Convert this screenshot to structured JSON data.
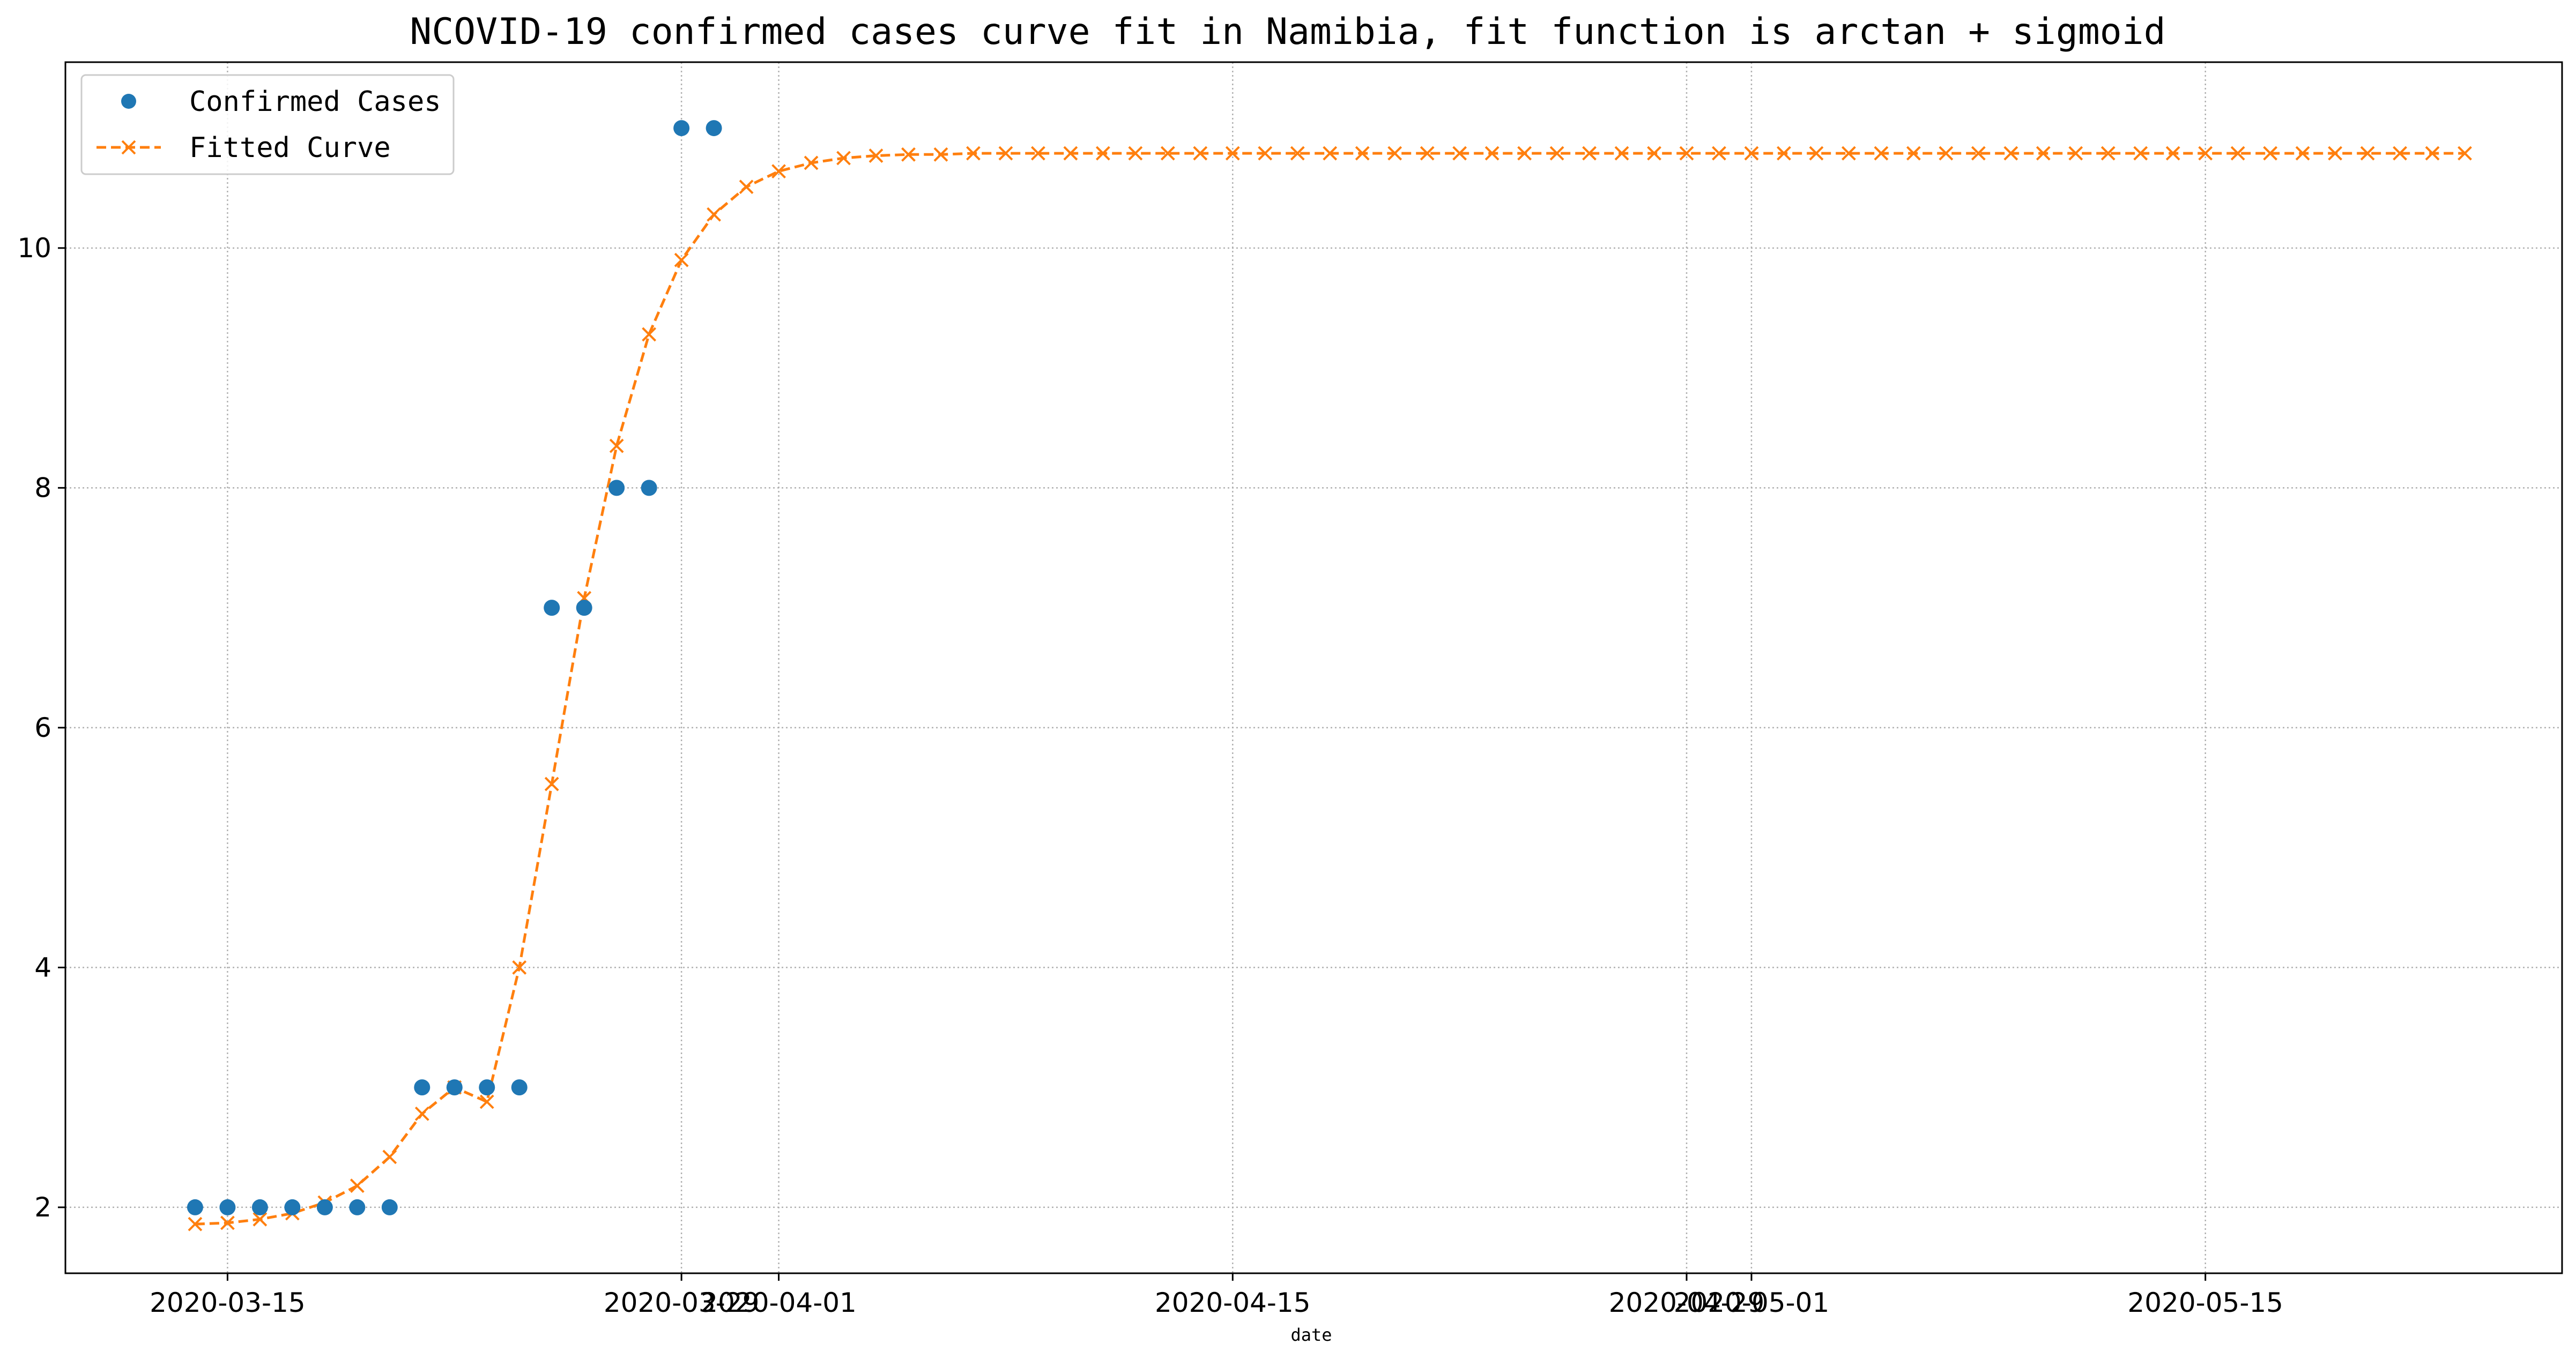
{
  "chart_data": {
    "type": "line",
    "title": "NCOVID-19 confirmed cases curve fit in Namibia, fit function is arctan + sigmoid",
    "xlabel": "date",
    "ylabel": "",
    "grid": true,
    "legend_placement": "top-left",
    "x_axis": {
      "type": "date",
      "range": [
        "2020-03-10",
        "2020-05-26"
      ],
      "ticks": [
        {
          "date": "2020-03-15",
          "label": "2020-03-15"
        },
        {
          "date": "2020-03-29",
          "label": "2020-03-29"
        },
        {
          "date": "2020-04-01",
          "label": "2020-04-01"
        },
        {
          "date": "2020-04-15",
          "label": "2020-04-15"
        },
        {
          "date": "2020-04-29",
          "label": "2020-04-29"
        },
        {
          "date": "2020-05-01",
          "label": "2020-05-01"
        },
        {
          "date": "2020-05-15",
          "label": "2020-05-15"
        }
      ]
    },
    "y_axis": {
      "range": [
        1.45,
        11.55
      ],
      "ticks": [
        2,
        4,
        6,
        8,
        10
      ]
    },
    "series": [
      {
        "name": "Confirmed Cases",
        "style": "markers",
        "marker": "circle",
        "color": "#1f77b4",
        "x": [
          "2020-03-14",
          "2020-03-15",
          "2020-03-16",
          "2020-03-17",
          "2020-03-18",
          "2020-03-19",
          "2020-03-20",
          "2020-03-21",
          "2020-03-22",
          "2020-03-23",
          "2020-03-24",
          "2020-03-25",
          "2020-03-26",
          "2020-03-27",
          "2020-03-28",
          "2020-03-29",
          "2020-03-30"
        ],
        "y": [
          2,
          2,
          2,
          2,
          2,
          2,
          2,
          3,
          3,
          3,
          3,
          7,
          7,
          8,
          8,
          11,
          11
        ]
      },
      {
        "name": "Fitted Curve",
        "style": "dashed-line",
        "marker": "x",
        "color": "#ff7f0e",
        "x": [
          "2020-03-14",
          "2020-03-15",
          "2020-03-16",
          "2020-03-17",
          "2020-03-18",
          "2020-03-19",
          "2020-03-20",
          "2020-03-21",
          "2020-03-22",
          "2020-03-23",
          "2020-03-24",
          "2020-03-25",
          "2020-03-26",
          "2020-03-27",
          "2020-03-28",
          "2020-03-29",
          "2020-03-30",
          "2020-03-31",
          "2020-04-01",
          "2020-04-02",
          "2020-04-03",
          "2020-04-04",
          "2020-04-05",
          "2020-04-06",
          "2020-04-07",
          "2020-04-08",
          "2020-04-09",
          "2020-04-10",
          "2020-04-11",
          "2020-04-12",
          "2020-04-13",
          "2020-04-14",
          "2020-04-15",
          "2020-04-16",
          "2020-04-17",
          "2020-04-18",
          "2020-04-19",
          "2020-04-20",
          "2020-04-21",
          "2020-04-22",
          "2020-04-23",
          "2020-04-24",
          "2020-04-25",
          "2020-04-26",
          "2020-04-27",
          "2020-04-28",
          "2020-04-29",
          "2020-04-30",
          "2020-05-01",
          "2020-05-02",
          "2020-05-03",
          "2020-05-04",
          "2020-05-05",
          "2020-05-06",
          "2020-05-07",
          "2020-05-08",
          "2020-05-09",
          "2020-05-10",
          "2020-05-11",
          "2020-05-12",
          "2020-05-13",
          "2020-05-14",
          "2020-05-15",
          "2020-05-16",
          "2020-05-17",
          "2020-05-18",
          "2020-05-19",
          "2020-05-20",
          "2020-05-21",
          "2020-05-22",
          "2020-05-23"
        ],
        "y": [
          1.86,
          1.87,
          1.9,
          1.95,
          2.04,
          2.18,
          2.42,
          2.78,
          3.0,
          2.88,
          4.0,
          5.53,
          7.08,
          8.35,
          9.28,
          9.9,
          10.28,
          10.51,
          10.64,
          10.71,
          10.75,
          10.77,
          10.78,
          10.78,
          10.79,
          10.79,
          10.79,
          10.79,
          10.79,
          10.79,
          10.79,
          10.79,
          10.79,
          10.79,
          10.79,
          10.79,
          10.79,
          10.79,
          10.79,
          10.79,
          10.79,
          10.79,
          10.79,
          10.79,
          10.79,
          10.79,
          10.79,
          10.79,
          10.79,
          10.79,
          10.79,
          10.79,
          10.79,
          10.79,
          10.79,
          10.79,
          10.79,
          10.79,
          10.79,
          10.79,
          10.79,
          10.79,
          10.79,
          10.79,
          10.79,
          10.79,
          10.79,
          10.79,
          10.79,
          10.79,
          10.79
        ]
      }
    ]
  }
}
